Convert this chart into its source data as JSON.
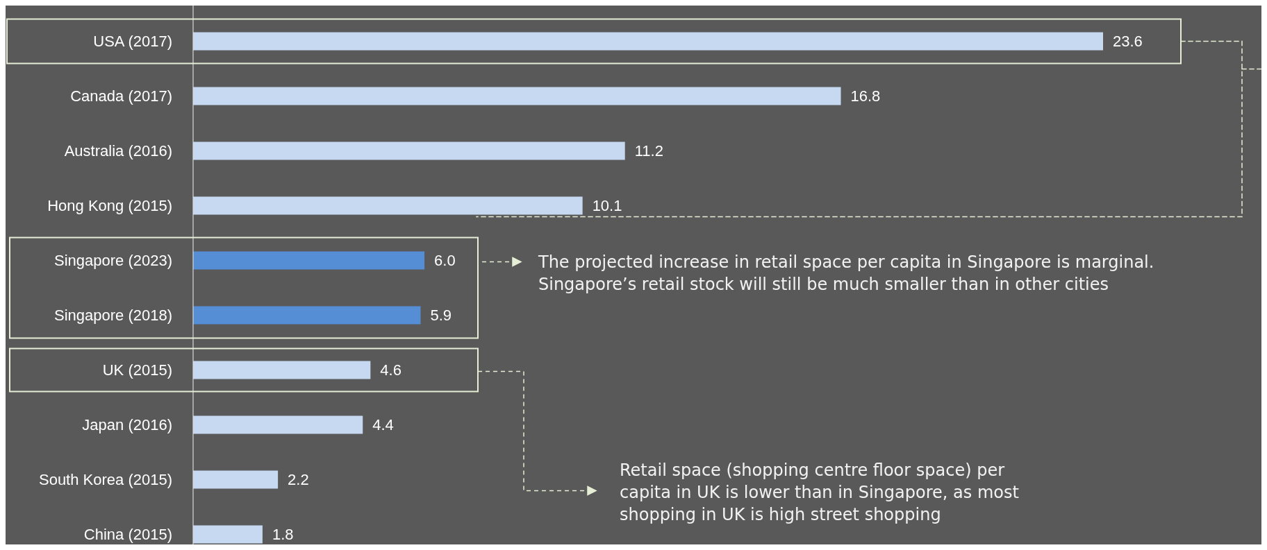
{
  "chart_data": {
    "type": "bar",
    "orientation": "horizontal",
    "categories": [
      "USA (2017)",
      "Canada (2017)",
      "Australia (2016)",
      "Hong Kong (2015)",
      "Singapore (2023)",
      "Singapore (2018)",
      "UK (2015)",
      "Japan (2016)",
      "South Korea (2015)",
      "China (2015)"
    ],
    "values": [
      23.6,
      16.8,
      11.2,
      10.1,
      6.0,
      5.9,
      4.6,
      4.4,
      2.2,
      1.8
    ],
    "value_labels": [
      "23.6",
      "16.8",
      "11.2",
      "10.1",
      "6.0",
      "5.9",
      "4.6",
      "4.4",
      "2.2",
      "1.8"
    ],
    "colors": [
      "#c6d9f1",
      "#c6d9f1",
      "#c6d9f1",
      "#c6d9f1",
      "#558ed5",
      "#558ed5",
      "#c6d9f1",
      "#c6d9f1",
      "#c6d9f1",
      "#c6d9f1"
    ],
    "annotations": [
      "The projected increase in retail space per capita in Singapore is marginal.\nSingapore’s retail stock will still be much smaller than in other cities",
      "Retail space (shopping centre floor space) per\ncapita in UK is lower than in Singapore, as most\nshopping in UK is high street shopping"
    ]
  }
}
